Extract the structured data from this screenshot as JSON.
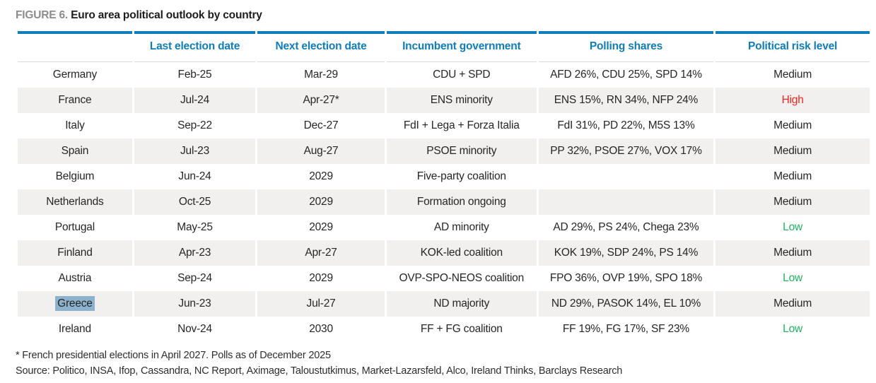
{
  "figure": {
    "label": "FIGURE 6.",
    "title": "Euro area political outlook by country"
  },
  "table": {
    "columns": {
      "country": "",
      "last_election": "Last election date",
      "next_election": "Next election date",
      "incumbent": "Incumbent government",
      "polling": "Polling shares",
      "risk": "Political risk level"
    },
    "rows": [
      {
        "country": "Germany",
        "last": "Feb-25",
        "next": "Mar-29",
        "government": "CDU + SPD",
        "polling": "AFD 26%, CDU 25%, SPD 14%",
        "risk": "Medium",
        "risk_level": "medium",
        "selected": false
      },
      {
        "country": "France",
        "last": "Jul-24",
        "next": "Apr-27*",
        "government": "ENS minority",
        "polling": "ENS 15%, RN 34%, NFP 24%",
        "risk": "High",
        "risk_level": "high",
        "selected": false
      },
      {
        "country": "Italy",
        "last": "Sep-22",
        "next": "Dec-27",
        "government": "FdI + Lega + Forza Italia",
        "polling": "FdI 31%, PD 22%, M5S 13%",
        "risk": "Medium",
        "risk_level": "medium",
        "selected": false
      },
      {
        "country": "Spain",
        "last": "Jul-23",
        "next": "Aug-27",
        "government": "PSOE minority",
        "polling": "PP 32%, PSOE 27%, VOX 17%",
        "risk": "Medium",
        "risk_level": "medium",
        "selected": false
      },
      {
        "country": "Belgium",
        "last": "Jun-24",
        "next": "2029",
        "government": "Five-party coalition",
        "polling": "",
        "risk": "Medium",
        "risk_level": "medium",
        "selected": false
      },
      {
        "country": "Netherlands",
        "last": "Oct-25",
        "next": "2029",
        "government": "Formation ongoing",
        "polling": "",
        "risk": "Medium",
        "risk_level": "medium",
        "selected": false
      },
      {
        "country": "Portugal",
        "last": "May-25",
        "next": "2029",
        "government": "AD minority",
        "polling": "AD 29%, PS 24%, Chega 23%",
        "risk": "Low",
        "risk_level": "low",
        "selected": false
      },
      {
        "country": "Finland",
        "last": "Apr-23",
        "next": "Apr-27",
        "government": "KOK-led coalition",
        "polling": "KOK 19%, SDP 24%, PS 14%",
        "risk": "Medium",
        "risk_level": "medium",
        "selected": false
      },
      {
        "country": "Austria",
        "last": "Sep-24",
        "next": "2029",
        "government": "OVP-SPO-NEOS coalition",
        "polling": "FPO 36%, OVP 19%, SPO 18%",
        "risk": "Low",
        "risk_level": "low",
        "selected": false
      },
      {
        "country": "Greece",
        "last": "Jun-23",
        "next": "Jul-27",
        "government": "ND majority",
        "polling": "ND 29%, PASOK 14%, EL 10%",
        "risk": "Medium",
        "risk_level": "medium",
        "selected": true
      },
      {
        "country": "Ireland",
        "last": "Nov-24",
        "next": "2030",
        "government": "FF + FG coalition",
        "polling": "FF 19%, FG 17%, SF 23%",
        "risk": "Low",
        "risk_level": "low",
        "selected": false
      }
    ]
  },
  "footnotes": {
    "note": "* French presidential elections in April 2027. Polls as of December 2025",
    "source": "Source: Politico, INSA, Ifop, Cassandra, NC Report, Aximage, Taloustutkimus, Market-Lazarsfeld, Alco, Ireland Thinks, Barclays Research"
  },
  "colors": {
    "accent_blue": "#0e7dba",
    "title_gray": "#8c8c8c",
    "text_dark": "#262626",
    "stripe_bg": "#f2f0ee",
    "risk_high": "#f5231e",
    "risk_low": "#1eb45c",
    "selection_blue": "#8cb2cd",
    "underline_gray": "#d9d9d9"
  }
}
